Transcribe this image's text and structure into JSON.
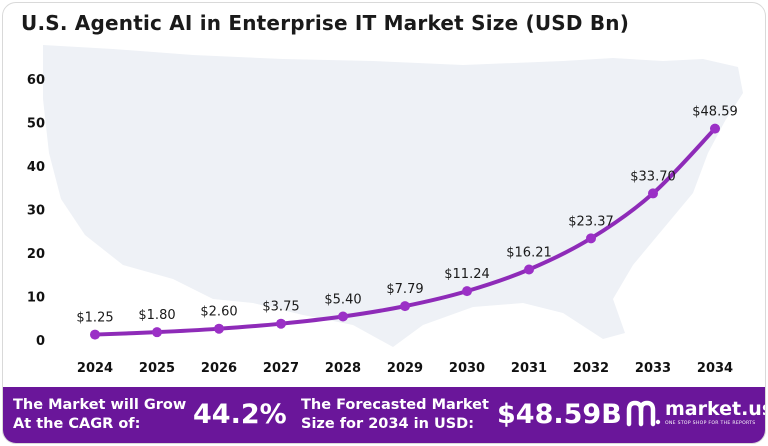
{
  "chart_data": {
    "type": "line",
    "title": "U.S. Agentic AI in Enterprise IT Market Size (USD Bn)",
    "categories": [
      "2024",
      "2025",
      "2026",
      "2027",
      "2028",
      "2029",
      "2030",
      "2031",
      "2032",
      "2033",
      "2034"
    ],
    "values": [
      1.25,
      1.8,
      2.6,
      3.75,
      5.4,
      7.79,
      11.24,
      16.21,
      23.37,
      33.7,
      48.59
    ],
    "data_labels": [
      "$1.25",
      "$1.80",
      "$2.60",
      "$3.75",
      "$5.40",
      "$7.79",
      "$11.24",
      "$16.21",
      "$23.37",
      "$33.70",
      "$48.59"
    ],
    "ylim": [
      0,
      60
    ],
    "yticks": [
      "0",
      "10",
      "20",
      "30",
      "40",
      "50",
      "60"
    ],
    "xlabel": "",
    "ylabel": "",
    "grid": false,
    "line_color": "#8e2bb8",
    "marker_color": "#9b30c6"
  },
  "footer": {
    "cagr_label_line1": "The Market will Grow",
    "cagr_label_line2": "At the CAGR of:",
    "cagr_value": "44.2%",
    "forecast_label_line1": "The Forecasted Market",
    "forecast_label_line2": "Size for 2034 in USD:",
    "forecast_value": "$48.59B",
    "brand": "market.us",
    "tagline": "ONE STOP SHOP FOR THE REPORTS",
    "background_color": "#6a169a"
  }
}
